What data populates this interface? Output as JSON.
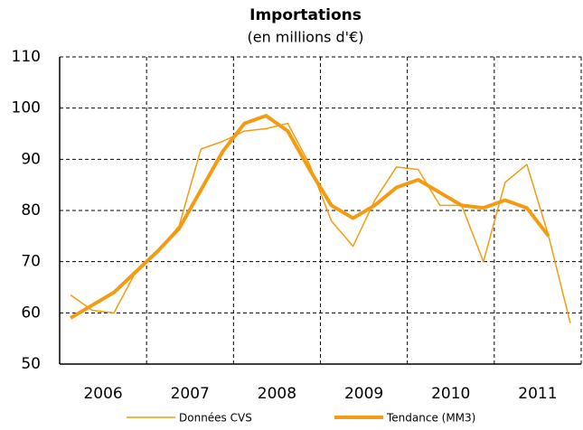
{
  "chart_data": {
    "type": "line",
    "title": "Importations",
    "subtitle": "(en millions d'€)",
    "categories": [
      null,
      null,
      null,
      null,
      null,
      null,
      null,
      null,
      null,
      null,
      null,
      null,
      null,
      null,
      null,
      null,
      null,
      null,
      null,
      null,
      null,
      null,
      null,
      null
    ],
    "x_groups": [
      "2006",
      "2007",
      "2008",
      "2009",
      "2010",
      "2011"
    ],
    "series": [
      {
        "name": "Données CVS",
        "color": "#f39c12",
        "width": 1.5,
        "values": [
          63.5,
          60.5,
          60,
          68,
          72,
          77,
          92,
          93.5,
          95.5,
          96,
          97,
          89,
          78,
          73,
          82,
          88.5,
          88,
          81,
          81,
          70,
          85.5,
          89,
          75,
          58
        ]
      },
      {
        "name": "Tendance (MM3)",
        "color": "#f39c12",
        "width": 4,
        "values": [
          59,
          61.5,
          64,
          68,
          72,
          76.5,
          84,
          91.5,
          97,
          98.5,
          95.5,
          88,
          81,
          78.5,
          81,
          84.5,
          86,
          83.5,
          81,
          80.5,
          82,
          80.5,
          75,
          null
        ]
      }
    ],
    "ylim": [
      50,
      110
    ],
    "yticks": [
      50,
      60,
      70,
      80,
      90,
      100,
      110
    ],
    "grid": true
  }
}
